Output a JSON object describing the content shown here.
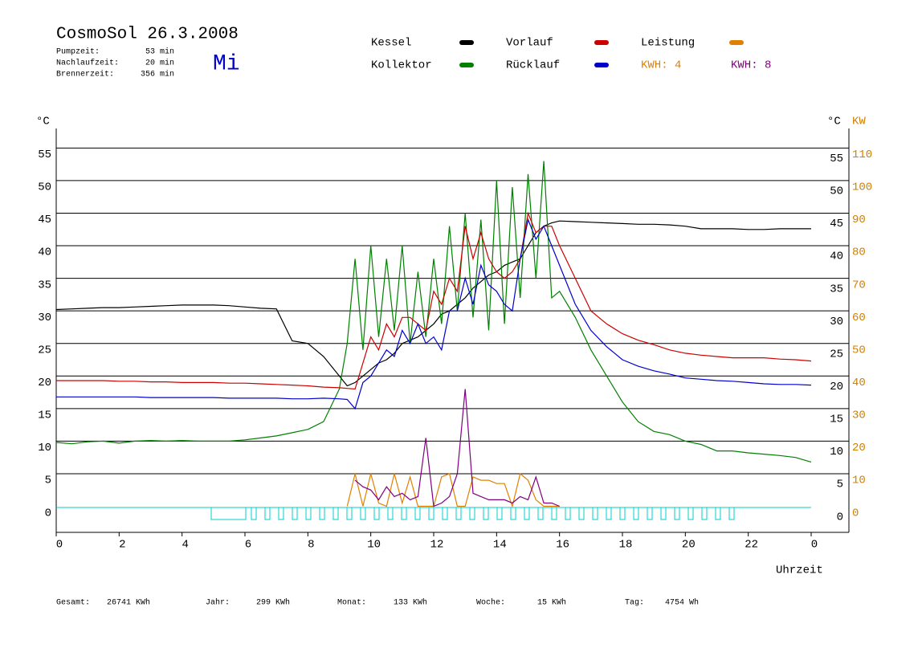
{
  "chart_data": {
    "type": "line",
    "title": "CosmoSol 26.3.2008",
    "weekday": "Mi",
    "info": [
      {
        "label": "Pumpzeit:",
        "value": "53 min"
      },
      {
        "label": "Nachlaufzeit:",
        "value": "20 min"
      },
      {
        "label": "Brennerzeit:",
        "value": "356 min"
      }
    ],
    "footer": [
      {
        "label": "Gesamt:",
        "value": "26741 KWh"
      },
      {
        "label": "Jahr:",
        "value": "299 KWh"
      },
      {
        "label": "Monat:",
        "value": "133 KWh"
      },
      {
        "label": "Woche:",
        "value": "15 KWh"
      },
      {
        "label": "Tag:",
        "value": "4754 Wh"
      }
    ],
    "annotations": [
      {
        "text": "KWH: 4",
        "color": "#e08000"
      }
    ],
    "ylabel": "°C",
    "y2label_left": "°C",
    "y2label": "KW",
    "xlabel": "Uhrzeit",
    "xlim": [
      0,
      25.2
    ],
    "xticks": [
      0,
      2,
      4,
      6,
      8,
      10,
      12,
      14,
      16,
      18,
      20,
      22,
      {
        "value": 24,
        "label": "0"
      }
    ],
    "ylim": [
      -4,
      58
    ],
    "yticks": [
      0,
      5,
      10,
      15,
      20,
      25,
      30,
      35,
      40,
      45,
      50,
      55
    ],
    "y2lim": [
      -8,
      116
    ],
    "y2ticks": [
      0,
      10,
      20,
      30,
      40,
      50,
      60,
      70,
      80,
      90,
      100,
      110
    ],
    "grid": true,
    "x": [
      0,
      0.5,
      1,
      1.5,
      2,
      2.5,
      3,
      3.5,
      4,
      4.5,
      5,
      5.5,
      6,
      6.5,
      7,
      7.5,
      8,
      8.5,
      9,
      9.25,
      9.5,
      9.75,
      10,
      10.25,
      10.5,
      10.75,
      11,
      11.25,
      11.5,
      11.75,
      12,
      12.25,
      12.5,
      12.75,
      13,
      13.25,
      13.5,
      13.75,
      14,
      14.25,
      14.5,
      14.75,
      15,
      15.25,
      15.5,
      15.75,
      16,
      16.5,
      17,
      17.5,
      18,
      18.5,
      19,
      19.5,
      20,
      20.5,
      21,
      21.5,
      22,
      22.5,
      23,
      23.5,
      24
    ],
    "series": [
      {
        "name": "Kessel",
        "color": "#000000",
        "values": [
          30.2,
          30.3,
          30.4,
          30.5,
          30.5,
          30.6,
          30.7,
          30.8,
          30.9,
          30.9,
          30.9,
          30.8,
          30.6,
          30.4,
          30.3,
          25.4,
          25.0,
          23.0,
          20.0,
          18.5,
          19.0,
          20.0,
          21.0,
          22.0,
          22.5,
          23.5,
          25.0,
          25.5,
          26.0,
          27.0,
          28.0,
          29.5,
          30.0,
          31.0,
          32.0,
          33.5,
          34.5,
          35.5,
          36.0,
          37.0,
          37.5,
          38.0,
          40.0,
          42.0,
          43.0,
          43.5,
          43.8,
          43.7,
          43.6,
          43.5,
          43.4,
          43.3,
          43.3,
          43.2,
          43.0,
          42.6,
          42.6,
          42.6,
          42.5,
          42.5,
          42.6,
          42.6,
          42.6
        ]
      },
      {
        "name": "Kollektor",
        "color": "#008000",
        "values": [
          9.8,
          9.6,
          9.9,
          10.0,
          9.7,
          10.0,
          10.1,
          10.0,
          10.1,
          10.0,
          10.0,
          10.0,
          10.2,
          10.5,
          10.8,
          11.3,
          11.8,
          13.0,
          18.0,
          25,
          38,
          24,
          40,
          26,
          38,
          27,
          40,
          25,
          36,
          26,
          38,
          28,
          43,
          30,
          45,
          29,
          44,
          27,
          50,
          28,
          49,
          32,
          51,
          35,
          53,
          32,
          33,
          29,
          24,
          20,
          16,
          13,
          11.5,
          11,
          10,
          9.5,
          8.5,
          8.5,
          8.2,
          8,
          7.8,
          7.5,
          6.8
        ]
      },
      {
        "name": "Vorlauf",
        "color": "#cc0000",
        "values": [
          19.3,
          19.3,
          19.3,
          19.3,
          19.2,
          19.2,
          19.1,
          19.1,
          19.0,
          19.0,
          19.0,
          18.9,
          18.9,
          18.8,
          18.7,
          18.6,
          18.5,
          18.3,
          18.2,
          18.1,
          18.0,
          22,
          26,
          24,
          28,
          26,
          29,
          29,
          28,
          27,
          33,
          31,
          35,
          33,
          43,
          38,
          42,
          38,
          36,
          35,
          36,
          38,
          45,
          42,
          43,
          43,
          40,
          35,
          30,
          28,
          26.5,
          25.5,
          24.8,
          24,
          23.5,
          23.2,
          23,
          22.8,
          22.8,
          22.8,
          22.6,
          22.5,
          22.3
        ]
      },
      {
        "name": "Rücklauf",
        "color": "#0000cc",
        "values": [
          16.8,
          16.8,
          16.8,
          16.8,
          16.8,
          16.8,
          16.7,
          16.7,
          16.7,
          16.7,
          16.7,
          16.6,
          16.6,
          16.6,
          16.6,
          16.5,
          16.5,
          16.6,
          16.5,
          16.4,
          15,
          19,
          20,
          22,
          24,
          23,
          27,
          25,
          28,
          25,
          26,
          24,
          30,
          30,
          35,
          31,
          37,
          34,
          33,
          31,
          30,
          38,
          44,
          41,
          43,
          40,
          37,
          31,
          27,
          24.5,
          22.5,
          21.5,
          20.8,
          20.3,
          19.7,
          19.5,
          19.3,
          19.2,
          19.0,
          18.8,
          18.7,
          18.7,
          18.6
        ]
      },
      {
        "name": "Leistung",
        "color": "#e08000",
        "axis": "y2",
        "values": [
          null,
          null,
          null,
          null,
          null,
          null,
          null,
          null,
          null,
          null,
          null,
          null,
          null,
          null,
          null,
          null,
          null,
          null,
          null,
          0,
          10,
          0,
          10,
          1,
          0,
          10,
          1,
          9,
          0,
          0,
          0,
          9,
          10,
          0,
          0,
          9,
          8,
          8,
          7,
          7,
          0,
          10,
          8,
          2,
          0,
          0,
          0,
          null,
          null,
          null,
          null,
          null,
          null,
          null,
          null,
          null,
          null,
          null,
          null,
          null,
          null,
          null,
          null
        ]
      },
      {
        "name": "KWH: 8",
        "color": "#800080",
        "axis": "y2",
        "values": [
          null,
          null,
          null,
          null,
          null,
          null,
          null,
          null,
          null,
          null,
          null,
          null,
          null,
          null,
          null,
          null,
          null,
          null,
          null,
          null,
          8,
          6,
          5,
          2,
          6,
          3,
          4,
          2,
          3,
          21,
          0,
          1,
          3,
          10,
          36,
          4,
          3,
          2,
          2,
          2,
          1,
          3,
          2,
          9,
          1,
          1,
          0,
          null,
          null,
          null,
          null,
          null,
          null,
          null,
          null,
          null,
          null,
          null,
          null,
          null,
          null,
          null,
          null
        ]
      }
    ]
  }
}
